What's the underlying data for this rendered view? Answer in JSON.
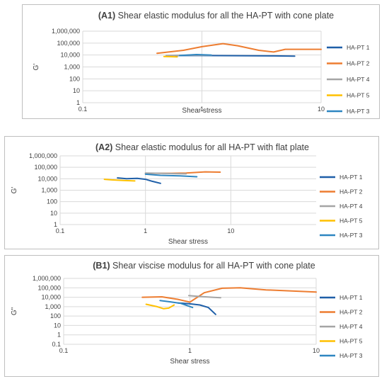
{
  "colors": {
    "HA-PT 1": "#1f5fa8",
    "HA-PT 2": "#ed7d31",
    "HA-PT 4": "#a5a5a5",
    "HA-PT 5": "#ffc000",
    "HA-PT 3": "#2e86c1"
  },
  "chart_data": [
    {
      "type": "line",
      "title_bold": "(A1)",
      "title_rest": " Shear elastic modulus for all the HA-PT with cone plate",
      "xlabel": "Shear stress",
      "ylabel": "G'",
      "xscale": "log",
      "yscale": "log",
      "xlim": [
        0.1,
        10
      ],
      "ylim": [
        1,
        1000000
      ],
      "xticks": [
        "0.1",
        "1",
        "10"
      ],
      "yticks": [
        "1",
        "10",
        "100",
        "1,000",
        "10,000",
        "100,000",
        "1,000,000"
      ],
      "legend": [
        "HA-PT 1",
        "HA-PT 2",
        "HA-PT 4",
        "HA-PT 5",
        "HA-PT 3"
      ],
      "grid": true,
      "legend_position": "right",
      "series": [
        {
          "name": "HA-PT 1",
          "x": [
            0.6,
            1,
            2,
            4,
            6
          ],
          "y": [
            9000,
            9000,
            8800,
            8500,
            8000
          ]
        },
        {
          "name": "HA-PT 2",
          "x": [
            0.42,
            0.7,
            1,
            1.5,
            2,
            3,
            4,
            5,
            10
          ],
          "y": [
            14000,
            25000,
            50000,
            90000,
            60000,
            25000,
            18000,
            30000,
            30000
          ]
        },
        {
          "name": "HA-PT 4",
          "x": [
            0.5,
            0.8,
            1.2
          ],
          "y": [
            9000,
            10000,
            9500
          ]
        },
        {
          "name": "HA-PT 5",
          "x": [
            0.48,
            0.62
          ],
          "y": [
            7500,
            7000
          ]
        },
        {
          "name": "HA-PT 3",
          "x": [
            0.65,
            0.9,
            1.2
          ],
          "y": [
            9000,
            11000,
            10000
          ]
        }
      ]
    },
    {
      "type": "line",
      "title_bold": "(A2)",
      "title_rest": " Shear elastic modulus for all HA-PT with flat plate",
      "xlabel": "Shear stress",
      "ylabel": "G'",
      "xscale": "log",
      "yscale": "log",
      "xlim": [
        0.1,
        100
      ],
      "ylim": [
        1,
        1000000
      ],
      "xticks": [
        "0.1",
        "1",
        "10"
      ],
      "yticks": [
        "1",
        "10",
        "100",
        "1,000",
        "10,000",
        "100,000",
        "1,000,000"
      ],
      "legend": [
        "HA-PT 1",
        "HA-PT 2",
        "HA-PT 4",
        "HA-PT 5",
        "HA-PT 3"
      ],
      "grid": true,
      "legend_position": "right",
      "series": [
        {
          "name": "HA-PT 1",
          "x": [
            0.47,
            0.6,
            0.8,
            1,
            1.2,
            1.5
          ],
          "y": [
            12000,
            10000,
            11000,
            9000,
            6000,
            4000
          ]
        },
        {
          "name": "HA-PT 2",
          "x": [
            1,
            2,
            3,
            5,
            7.5
          ],
          "y": [
            30000,
            30000,
            32000,
            40000,
            38000
          ]
        },
        {
          "name": "HA-PT 4",
          "x": [
            1,
            1.5,
            2.2,
            3
          ],
          "y": [
            32000,
            30000,
            28000,
            27000
          ]
        },
        {
          "name": "HA-PT 5",
          "x": [
            0.33,
            0.4,
            0.55,
            0.75
          ],
          "y": [
            9000,
            8000,
            7000,
            6500
          ]
        },
        {
          "name": "HA-PT 3",
          "x": [
            1,
            1.5,
            2.5,
            4
          ],
          "y": [
            25000,
            20000,
            18000,
            15000
          ]
        }
      ]
    },
    {
      "type": "line",
      "title_bold": "(B1)",
      "title_rest": " Shear viscise modulus for all HA-PT with cone plate",
      "xlabel": "Shear stress",
      "ylabel": "G\"",
      "xscale": "log",
      "yscale": "log",
      "xlim": [
        0.1,
        10
      ],
      "ylim": [
        0.1,
        1000000
      ],
      "xticks": [
        "0.1",
        "1",
        "10"
      ],
      "yticks": [
        "0.1",
        "1",
        "10",
        "100",
        "1,000",
        "10,000",
        "100,000",
        "1,000,000"
      ],
      "legend": [
        "HA-PT 1",
        "HA-PT 2",
        "HA-PT 4",
        "HA-PT 5",
        "HA-PT 3"
      ],
      "grid": true,
      "legend_position": "right",
      "series": [
        {
          "name": "HA-PT 1",
          "x": [
            0.8,
            1,
            1.2,
            1.4,
            1.6
          ],
          "y": [
            2500,
            2000,
            1500,
            800,
            150
          ]
        },
        {
          "name": "HA-PT 2",
          "x": [
            0.42,
            0.6,
            0.8,
            1,
            1.3,
            1.8,
            2.5,
            4,
            10
          ],
          "y": [
            10000,
            11000,
            6000,
            3000,
            30000,
            90000,
            100000,
            60000,
            35000
          ]
        },
        {
          "name": "HA-PT 4",
          "x": [
            0.98,
            1.2,
            1.5,
            1.75
          ],
          "y": [
            15000,
            12000,
            10000,
            9000
          ]
        },
        {
          "name": "HA-PT 5",
          "x": [
            0.45,
            0.55,
            0.62,
            0.68,
            0.75
          ],
          "y": [
            1800,
            1000,
            600,
            700,
            1500
          ]
        },
        {
          "name": "HA-PT 3",
          "x": [
            0.58,
            0.7,
            0.85,
            1.05
          ],
          "y": [
            4500,
            3200,
            2200,
            800
          ]
        }
      ]
    }
  ]
}
